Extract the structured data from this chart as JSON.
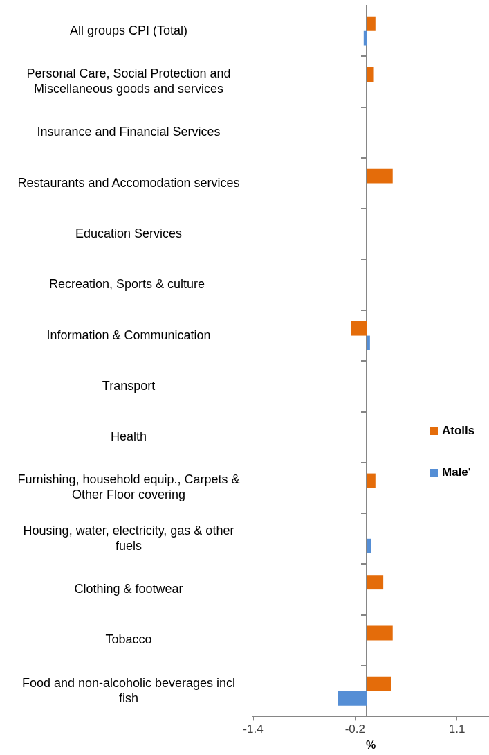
{
  "chart_data": {
    "type": "bar",
    "orientation": "horizontal",
    "xlabel": "%",
    "categories": [
      "All groups CPI (Total)",
      "Personal Care, Social Protection and Miscellaneous goods and services",
      "Insurance and Financial Services",
      "Restaurants and Accomodation services",
      "Education Services",
      "Recreation, Sports & culture ",
      "Information & Communication",
      "Transport",
      "Health",
      "Furnishing, household equip., Carpets & Other Floor covering",
      "Housing, water, electricity, gas & other fuels",
      "Clothing & footwear",
      "Tobacco",
      "Food and non-alcoholic beverages incl fish"
    ],
    "series": [
      {
        "name": "Atolls",
        "color": "#e46c0a",
        "values": [
          0.11,
          0.09,
          null,
          0.33,
          null,
          null,
          -0.2,
          null,
          null,
          0.11,
          null,
          0.21,
          0.33,
          0.31
        ]
      },
      {
        "name": "Male'",
        "color": "#558ed5",
        "values": [
          -0.04,
          null,
          null,
          null,
          null,
          null,
          0.04,
          null,
          null,
          null,
          0.05,
          null,
          null,
          -0.37
        ]
      }
    ],
    "xlim": [
      -1.45,
      1.55
    ],
    "xticks": [
      {
        "value": -1.45,
        "label": "-1.4"
      },
      {
        "value": -0.15,
        "label": "-0.2"
      },
      {
        "value": 1.15,
        "label": "1.1"
      }
    ],
    "grid": false,
    "legend": "right"
  }
}
